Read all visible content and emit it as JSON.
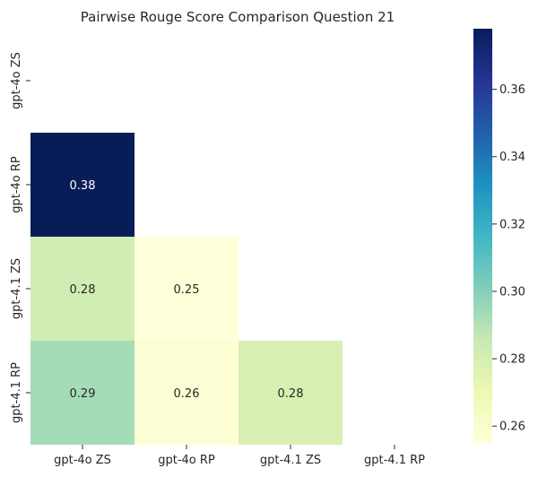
{
  "chart_data": {
    "type": "heatmap",
    "title": "Pairwise Rouge Score Comparison Question 21",
    "xlabel": "",
    "ylabel": "",
    "row_labels": [
      "gpt-4o ZS",
      "gpt-4o RP",
      "gpt-4.1 ZS",
      "gpt-4.1 RP"
    ],
    "col_labels": [
      "gpt-4o ZS",
      "gpt-4o RP",
      "gpt-4.1 ZS",
      "gpt-4.1 RP"
    ],
    "mask": "upper triangle including diagonal",
    "cells": [
      {
        "row": 1,
        "col": 0,
        "value": 0.378,
        "label": "0.38"
      },
      {
        "row": 2,
        "col": 0,
        "value": 0.282,
        "label": "0.28"
      },
      {
        "row": 2,
        "col": 1,
        "value": 0.255,
        "label": "0.25"
      },
      {
        "row": 3,
        "col": 0,
        "value": 0.293,
        "label": "0.29"
      },
      {
        "row": 3,
        "col": 1,
        "value": 0.257,
        "label": "0.26"
      },
      {
        "row": 3,
        "col": 2,
        "value": 0.279,
        "label": "0.28"
      }
    ],
    "colorbar": {
      "colormap": "YlGnBu",
      "range": [
        0.255,
        0.378
      ],
      "ticks": [
        0.26,
        0.28,
        0.3,
        0.32,
        0.34,
        0.36
      ],
      "tick_labels": [
        "0.26",
        "0.28",
        "0.30",
        "0.32",
        "0.34",
        "0.36"
      ]
    },
    "grid": false
  }
}
